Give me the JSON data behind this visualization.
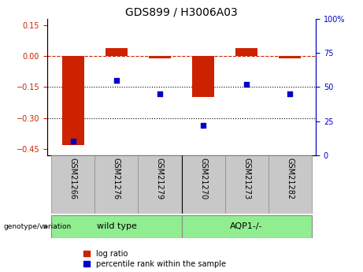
{
  "title": "GDS899 / H3006A03",
  "samples": [
    "GSM21266",
    "GSM21276",
    "GSM21279",
    "GSM21270",
    "GSM21273",
    "GSM21282"
  ],
  "log_ratios": [
    -0.43,
    0.04,
    -0.01,
    -0.2,
    0.04,
    -0.01
  ],
  "percentile_ranks": [
    10,
    55,
    45,
    22,
    52,
    45
  ],
  "bar_color": "#CC2200",
  "dot_color": "#0000CC",
  "ylim_left": [
    -0.48,
    0.18
  ],
  "ylim_right": [
    0,
    100
  ],
  "yticks_left": [
    0.15,
    0,
    -0.15,
    -0.3,
    -0.45
  ],
  "yticks_right": [
    100,
    75,
    50,
    25,
    0
  ],
  "hline_y": 0,
  "dotted_lines": [
    -0.15,
    -0.3
  ],
  "legend_labels": [
    "log ratio",
    "percentile rank within the sample"
  ],
  "bar_width": 0.5,
  "sample_box_color": "#C8C8C8",
  "group_box_color": "#90EE90",
  "group_defs": [
    [
      0,
      3,
      "wild type"
    ],
    [
      3,
      6,
      "AQP1-/-"
    ]
  ],
  "title_fontsize": 10,
  "tick_fontsize": 7,
  "legend_fontsize": 7,
  "group_fontsize": 8,
  "sample_fontsize": 7
}
